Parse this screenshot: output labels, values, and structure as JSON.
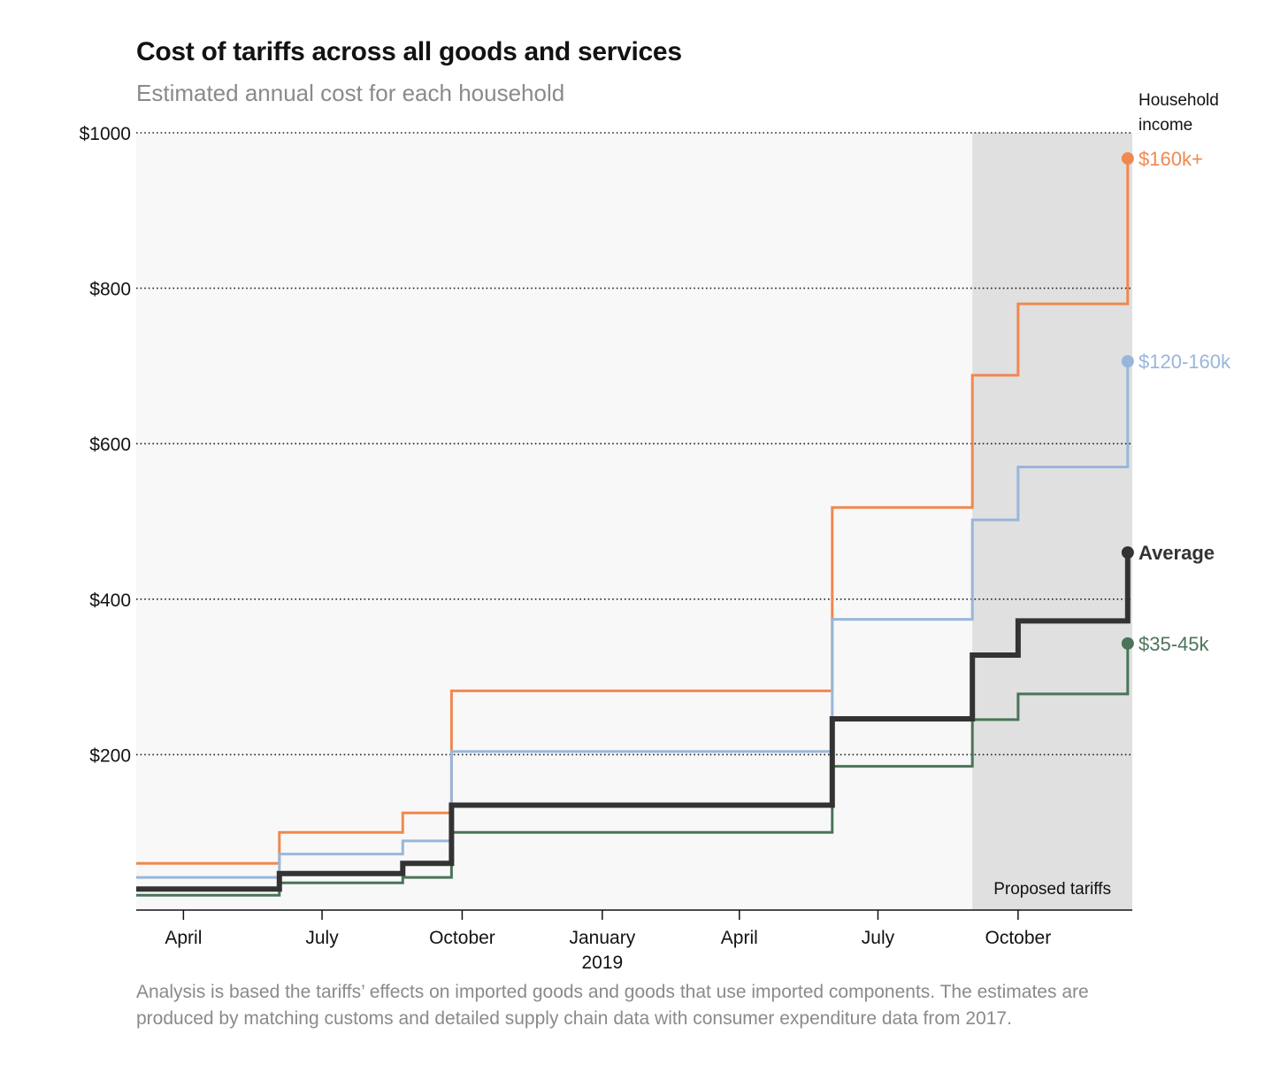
{
  "chart_data": {
    "type": "line",
    "step": true,
    "title": "Cost of tariffs across all goods and services",
    "subtitle": "Estimated annual cost for each household",
    "legend_title": "Household income",
    "ylim": [
      0,
      1000
    ],
    "yticks": [
      {
        "value": 200,
        "label": "$200"
      },
      {
        "value": 400,
        "label": "$400"
      },
      {
        "value": 600,
        "label": "$600"
      },
      {
        "value": 800,
        "label": "$800"
      },
      {
        "value": 1000,
        "label": "$1000"
      }
    ],
    "xlim": [
      "2018-03-01",
      "2019-12-15"
    ],
    "xticks": [
      {
        "date": "2018-04-01",
        "label": "April",
        "sublabel": ""
      },
      {
        "date": "2018-07-01",
        "label": "July",
        "sublabel": ""
      },
      {
        "date": "2018-10-01",
        "label": "October",
        "sublabel": ""
      },
      {
        "date": "2019-01-01",
        "label": "January",
        "sublabel": "2019"
      },
      {
        "date": "2019-04-01",
        "label": "April",
        "sublabel": ""
      },
      {
        "date": "2019-07-01",
        "label": "July",
        "sublabel": ""
      },
      {
        "date": "2019-10-01",
        "label": "October",
        "sublabel": ""
      }
    ],
    "shaded_region": {
      "from": "2019-09-01",
      "to": "2019-12-15",
      "label": "Proposed tariffs"
    },
    "grid": "horizontal dotted",
    "series": [
      {
        "name": "$160k+",
        "color": "#f0884f",
        "bold": false,
        "points": [
          {
            "date": "2018-03-01",
            "value": 60
          },
          {
            "date": "2018-06-03",
            "value": 100
          },
          {
            "date": "2018-08-23",
            "value": 125
          },
          {
            "date": "2018-09-24",
            "value": 282
          },
          {
            "date": "2019-06-01",
            "value": 518
          },
          {
            "date": "2019-09-01",
            "value": 688
          },
          {
            "date": "2019-10-01",
            "value": 780
          },
          {
            "date": "2019-12-12",
            "value": 967
          }
        ]
      },
      {
        "name": "$120-160k",
        "color": "#99b6da",
        "bold": false,
        "points": [
          {
            "date": "2018-03-01",
            "value": 42
          },
          {
            "date": "2018-06-03",
            "value": 72
          },
          {
            "date": "2018-08-23",
            "value": 89
          },
          {
            "date": "2018-09-24",
            "value": 204
          },
          {
            "date": "2019-06-01",
            "value": 374
          },
          {
            "date": "2019-09-01",
            "value": 502
          },
          {
            "date": "2019-10-01",
            "value": 570
          },
          {
            "date": "2019-12-12",
            "value": 706
          }
        ]
      },
      {
        "name": "Average",
        "color": "#333333",
        "bold": true,
        "points": [
          {
            "date": "2018-03-01",
            "value": 27
          },
          {
            "date": "2018-06-03",
            "value": 47
          },
          {
            "date": "2018-08-23",
            "value": 60
          },
          {
            "date": "2018-09-24",
            "value": 135
          },
          {
            "date": "2019-06-01",
            "value": 246
          },
          {
            "date": "2019-09-01",
            "value": 328
          },
          {
            "date": "2019-10-01",
            "value": 372
          },
          {
            "date": "2019-12-12",
            "value": 460
          }
        ]
      },
      {
        "name": "$35-45k",
        "color": "#4b7458",
        "bold": false,
        "points": [
          {
            "date": "2018-03-01",
            "value": 19
          },
          {
            "date": "2018-06-03",
            "value": 35
          },
          {
            "date": "2018-08-23",
            "value": 42
          },
          {
            "date": "2018-09-24",
            "value": 100
          },
          {
            "date": "2019-06-01",
            "value": 185
          },
          {
            "date": "2019-09-01",
            "value": 245
          },
          {
            "date": "2019-10-01",
            "value": 278
          },
          {
            "date": "2019-12-12",
            "value": 343
          }
        ]
      }
    ]
  },
  "note": "Analysis is based the tariffs’ effects on imported goods and goods that use imported components. The estimates are produced by matching customs and detailed supply chain data with consumer expenditure data from 2017."
}
